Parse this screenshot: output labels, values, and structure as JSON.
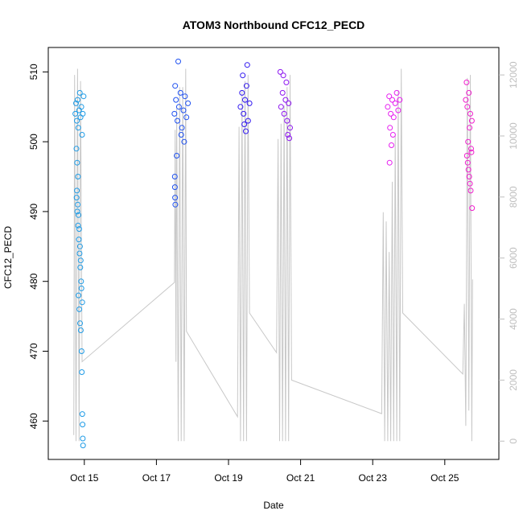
{
  "chart_data": {
    "type": "scatter",
    "title": "ATOM3 Northbound CFC12_PECD",
    "xlabel": "Date",
    "ylabel": "CFC12_PECD",
    "xlim": [
      "2016-10-14T00:00",
      "2016-10-26T12:00"
    ],
    "ylim": [
      454.5,
      513.5
    ],
    "x_ticks": [
      {
        "date": "2016-10-15T00:00",
        "label": "Oct 15"
      },
      {
        "date": "2016-10-17T00:00",
        "label": "Oct 17"
      },
      {
        "date": "2016-10-19T00:00",
        "label": "Oct 19"
      },
      {
        "date": "2016-10-21T00:00",
        "label": "Oct 21"
      },
      {
        "date": "2016-10-23T00:00",
        "label": "Oct 23"
      },
      {
        "date": "2016-10-25T00:00",
        "label": "Oct 25"
      }
    ],
    "y_ticks": [
      460,
      470,
      480,
      490,
      500,
      510
    ],
    "y2_ticks": [
      0,
      2000,
      4000,
      6000,
      8000,
      10000,
      12000
    ],
    "y2lim": [
      -600,
      12900
    ],
    "grid": false,
    "legend": "none",
    "colors": {
      "flight_1": "#1e9be6",
      "flight_2": "#1e50f0",
      "flight_3": "#3219f0",
      "flight_4": "#8c14f0",
      "flight_5": "#e61ef0",
      "flight_6": "#f01ecd",
      "secondary_line": "#c8c8c8",
      "secondary_axis": "#bebebe"
    },
    "series": [
      {
        "flight": "flight_1",
        "points": [
          {
            "x": "2016-10-14T18:00",
            "y": 504
          },
          {
            "x": "2016-10-14T18:30",
            "y": 505.5
          },
          {
            "x": "2016-10-14T19:00",
            "y": 503
          },
          {
            "x": "2016-10-14T19:30",
            "y": 506
          },
          {
            "x": "2016-10-14T20:00",
            "y": 502
          },
          {
            "x": "2016-10-14T20:30",
            "y": 504.5
          },
          {
            "x": "2016-10-14T21:00",
            "y": 507
          },
          {
            "x": "2016-10-14T21:30",
            "y": 503.5
          },
          {
            "x": "2016-10-14T22:00",
            "y": 505
          },
          {
            "x": "2016-10-14T22:30",
            "y": 501
          },
          {
            "x": "2016-10-14T23:00",
            "y": 504
          },
          {
            "x": "2016-10-14T23:30",
            "y": 506.5
          },
          {
            "x": "2016-10-14T18:45",
            "y": 499
          },
          {
            "x": "2016-10-14T19:15",
            "y": 497
          },
          {
            "x": "2016-10-14T19:45",
            "y": 495
          },
          {
            "x": "2016-10-14T18:50",
            "y": 492
          },
          {
            "x": "2016-10-14T19:20",
            "y": 490
          },
          {
            "x": "2016-10-14T19:50",
            "y": 488
          },
          {
            "x": "2016-10-14T20:20",
            "y": 486
          },
          {
            "x": "2016-10-14T20:50",
            "y": 484
          },
          {
            "x": "2016-10-14T21:20",
            "y": 482
          },
          {
            "x": "2016-10-14T21:50",
            "y": 480
          },
          {
            "x": "2016-10-14T20:10",
            "y": 478
          },
          {
            "x": "2016-10-14T20:40",
            "y": 476
          },
          {
            "x": "2016-10-14T21:10",
            "y": 474
          },
          {
            "x": "2016-10-14T21:40",
            "y": 473
          },
          {
            "x": "2016-10-14T22:10",
            "y": 470
          },
          {
            "x": "2016-10-14T22:20",
            "y": 467
          },
          {
            "x": "2016-10-14T22:40",
            "y": 461
          },
          {
            "x": "2016-10-14T22:50",
            "y": 459.5
          },
          {
            "x": "2016-10-14T23:00",
            "y": 457.5
          },
          {
            "x": "2016-10-14T23:10",
            "y": 456.5
          },
          {
            "x": "2016-10-14T19:05",
            "y": 493
          },
          {
            "x": "2016-10-14T19:35",
            "y": 491
          },
          {
            "x": "2016-10-14T20:05",
            "y": 489.5
          },
          {
            "x": "2016-10-14T20:35",
            "y": 487.5
          },
          {
            "x": "2016-10-14T21:05",
            "y": 485
          },
          {
            "x": "2016-10-14T21:35",
            "y": 483
          },
          {
            "x": "2016-10-14T22:05",
            "y": 479
          },
          {
            "x": "2016-10-14T22:35",
            "y": 477
          }
        ]
      },
      {
        "flight": "flight_2",
        "points": [
          {
            "x": "2016-10-17T12:00",
            "y": 504
          },
          {
            "x": "2016-10-17T13:00",
            "y": 506
          },
          {
            "x": "2016-10-17T14:00",
            "y": 503
          },
          {
            "x": "2016-10-17T15:00",
            "y": 505
          },
          {
            "x": "2016-10-17T16:00",
            "y": 507
          },
          {
            "x": "2016-10-17T17:00",
            "y": 502
          },
          {
            "x": "2016-10-17T18:00",
            "y": 504.5
          },
          {
            "x": "2016-10-17T19:00",
            "y": 506.5
          },
          {
            "x": "2016-10-17T20:00",
            "y": 503.5
          },
          {
            "x": "2016-10-17T21:00",
            "y": 505.5
          },
          {
            "x": "2016-10-17T12:30",
            "y": 508
          },
          {
            "x": "2016-10-17T14:30",
            "y": 511.5
          },
          {
            "x": "2016-10-17T16:30",
            "y": 501
          },
          {
            "x": "2016-10-17T18:30",
            "y": 500
          },
          {
            "x": "2016-10-17T13:30",
            "y": 498
          },
          {
            "x": "2016-10-17T12:15",
            "y": 495
          },
          {
            "x": "2016-10-17T12:20",
            "y": 493.5
          },
          {
            "x": "2016-10-17T12:25",
            "y": 492
          },
          {
            "x": "2016-10-17T12:35",
            "y": 491
          }
        ]
      },
      {
        "flight": "flight_3",
        "points": [
          {
            "x": "2016-10-19T08:00",
            "y": 505
          },
          {
            "x": "2016-10-19T09:00",
            "y": 507
          },
          {
            "x": "2016-10-19T10:00",
            "y": 504
          },
          {
            "x": "2016-10-19T11:00",
            "y": 506
          },
          {
            "x": "2016-10-19T12:00",
            "y": 508
          },
          {
            "x": "2016-10-19T13:00",
            "y": 503
          },
          {
            "x": "2016-10-19T14:00",
            "y": 505.5
          },
          {
            "x": "2016-10-19T09:30",
            "y": 509.5
          },
          {
            "x": "2016-10-19T12:30",
            "y": 511
          },
          {
            "x": "2016-10-19T10:30",
            "y": 502.5
          },
          {
            "x": "2016-10-19T11:30",
            "y": 501.5
          }
        ]
      },
      {
        "flight": "flight_4",
        "points": [
          {
            "x": "2016-10-20T11:00",
            "y": 505
          },
          {
            "x": "2016-10-20T12:00",
            "y": 507
          },
          {
            "x": "2016-10-20T13:00",
            "y": 504
          },
          {
            "x": "2016-10-20T14:00",
            "y": 506
          },
          {
            "x": "2016-10-20T15:00",
            "y": 503
          },
          {
            "x": "2016-10-20T16:00",
            "y": 505.5
          },
          {
            "x": "2016-10-20T17:00",
            "y": 502
          },
          {
            "x": "2016-10-20T12:30",
            "y": 509.5
          },
          {
            "x": "2016-10-20T10:30",
            "y": 510
          },
          {
            "x": "2016-10-20T14:30",
            "y": 508.5
          },
          {
            "x": "2016-10-20T15:30",
            "y": 501
          },
          {
            "x": "2016-10-20T16:30",
            "y": 500.5
          }
        ]
      },
      {
        "flight": "flight_5",
        "points": [
          {
            "x": "2016-10-23T10:00",
            "y": 505
          },
          {
            "x": "2016-10-23T11:00",
            "y": 506.5
          },
          {
            "x": "2016-10-23T12:00",
            "y": 504
          },
          {
            "x": "2016-10-23T13:00",
            "y": 506
          },
          {
            "x": "2016-10-23T14:00",
            "y": 503.5
          },
          {
            "x": "2016-10-23T15:00",
            "y": 505.5
          },
          {
            "x": "2016-10-23T16:00",
            "y": 507
          },
          {
            "x": "2016-10-23T17:00",
            "y": 504.5
          },
          {
            "x": "2016-10-23T18:00",
            "y": 506
          },
          {
            "x": "2016-10-23T11:30",
            "y": 502
          },
          {
            "x": "2016-10-23T13:30",
            "y": 501
          },
          {
            "x": "2016-10-23T12:30",
            "y": 499.5
          },
          {
            "x": "2016-10-23T11:15",
            "y": 497
          }
        ]
      },
      {
        "flight": "flight_6",
        "points": [
          {
            "x": "2016-10-25T14:00",
            "y": 506
          },
          {
            "x": "2016-10-25T15:00",
            "y": 505
          },
          {
            "x": "2016-10-25T16:00",
            "y": 507
          },
          {
            "x": "2016-10-25T17:00",
            "y": 504
          },
          {
            "x": "2016-10-25T18:00",
            "y": 503
          },
          {
            "x": "2016-10-25T14:30",
            "y": 508.5
          },
          {
            "x": "2016-10-25T16:30",
            "y": 502
          },
          {
            "x": "2016-10-25T15:30",
            "y": 500
          },
          {
            "x": "2016-10-25T14:45",
            "y": 498
          },
          {
            "x": "2016-10-25T15:15",
            "y": 497
          },
          {
            "x": "2016-10-25T15:45",
            "y": 496
          },
          {
            "x": "2016-10-25T16:15",
            "y": 495
          },
          {
            "x": "2016-10-25T16:45",
            "y": 494
          },
          {
            "x": "2016-10-25T17:15",
            "y": 493
          },
          {
            "x": "2016-10-25T17:30",
            "y": 499
          },
          {
            "x": "2016-10-25T17:45",
            "y": 498.5
          },
          {
            "x": "2016-10-25T18:10",
            "y": 490.5
          }
        ]
      }
    ],
    "secondary_line": {
      "axis": "right",
      "points": [
        {
          "x": "2016-10-14T17:00",
          "y": 200
        },
        {
          "x": "2016-10-14T17:30",
          "y": 12000
        },
        {
          "x": "2016-10-14T18:30",
          "y": 0
        },
        {
          "x": "2016-10-14T19:30",
          "y": 12200
        },
        {
          "x": "2016-10-14T20:30",
          "y": 0
        },
        {
          "x": "2016-10-14T21:30",
          "y": 11800
        },
        {
          "x": "2016-10-14T22:30",
          "y": 2600
        },
        {
          "x": "2016-10-17T12:00",
          "y": 5200
        },
        {
          "x": "2016-10-17T12:30",
          "y": 10200
        },
        {
          "x": "2016-10-17T13:00",
          "y": 2600
        },
        {
          "x": "2016-10-17T13:30",
          "y": 10900
        },
        {
          "x": "2016-10-17T14:30",
          "y": 0
        },
        {
          "x": "2016-10-17T15:30",
          "y": 11600
        },
        {
          "x": "2016-10-17T16:30",
          "y": 0
        },
        {
          "x": "2016-10-17T17:30",
          "y": 11600
        },
        {
          "x": "2016-10-17T18:30",
          "y": 0
        },
        {
          "x": "2016-10-17T19:30",
          "y": 12200
        },
        {
          "x": "2016-10-17T20:00",
          "y": 3600
        },
        {
          "x": "2016-10-19T06:00",
          "y": 800
        },
        {
          "x": "2016-10-19T07:00",
          "y": 10300
        },
        {
          "x": "2016-10-19T08:00",
          "y": 0
        },
        {
          "x": "2016-10-19T09:00",
          "y": 11500
        },
        {
          "x": "2016-10-19T10:00",
          "y": 0
        },
        {
          "x": "2016-10-19T11:00",
          "y": 11800
        },
        {
          "x": "2016-10-19T12:00",
          "y": 0
        },
        {
          "x": "2016-10-19T13:00",
          "y": 12000
        },
        {
          "x": "2016-10-19T14:00",
          "y": 4200
        },
        {
          "x": "2016-10-20T08:00",
          "y": 2900
        },
        {
          "x": "2016-10-20T09:00",
          "y": 9900
        },
        {
          "x": "2016-10-20T10:00",
          "y": 0
        },
        {
          "x": "2016-10-20T11:00",
          "y": 10400
        },
        {
          "x": "2016-10-20T12:00",
          "y": 0
        },
        {
          "x": "2016-10-20T13:00",
          "y": 11000
        },
        {
          "x": "2016-10-20T14:00",
          "y": 0
        },
        {
          "x": "2016-10-20T15:00",
          "y": 11600
        },
        {
          "x": "2016-10-20T16:00",
          "y": 0
        },
        {
          "x": "2016-10-20T17:00",
          "y": 12000
        },
        {
          "x": "2016-10-20T18:00",
          "y": 2000
        },
        {
          "x": "2016-10-23T06:00",
          "y": 900
        },
        {
          "x": "2016-10-23T07:00",
          "y": 7500
        },
        {
          "x": "2016-10-23T08:00",
          "y": 0
        },
        {
          "x": "2016-10-23T09:00",
          "y": 7200
        },
        {
          "x": "2016-10-23T10:00",
          "y": 0
        },
        {
          "x": "2016-10-23T11:00",
          "y": 6200
        },
        {
          "x": "2016-10-23T12:00",
          "y": 0
        },
        {
          "x": "2016-10-23T13:00",
          "y": 8500
        },
        {
          "x": "2016-10-23T14:00",
          "y": 0
        },
        {
          "x": "2016-10-23T15:00",
          "y": 10000
        },
        {
          "x": "2016-10-23T16:00",
          "y": 0
        },
        {
          "x": "2016-10-23T17:00",
          "y": 11500
        },
        {
          "x": "2016-10-23T18:00",
          "y": 0
        },
        {
          "x": "2016-10-23T19:00",
          "y": 12200
        },
        {
          "x": "2016-10-23T20:00",
          "y": 4200
        },
        {
          "x": "2016-10-25T12:00",
          "y": 2200
        },
        {
          "x": "2016-10-25T13:00",
          "y": 4500
        },
        {
          "x": "2016-10-25T14:00",
          "y": 500
        },
        {
          "x": "2016-10-25T15:00",
          "y": 11900
        },
        {
          "x": "2016-10-25T16:00",
          "y": 1000
        },
        {
          "x": "2016-10-25T17:00",
          "y": 12000
        },
        {
          "x": "2016-10-25T18:00",
          "y": 0
        },
        {
          "x": "2016-10-25T18:30",
          "y": 5300
        }
      ]
    }
  }
}
